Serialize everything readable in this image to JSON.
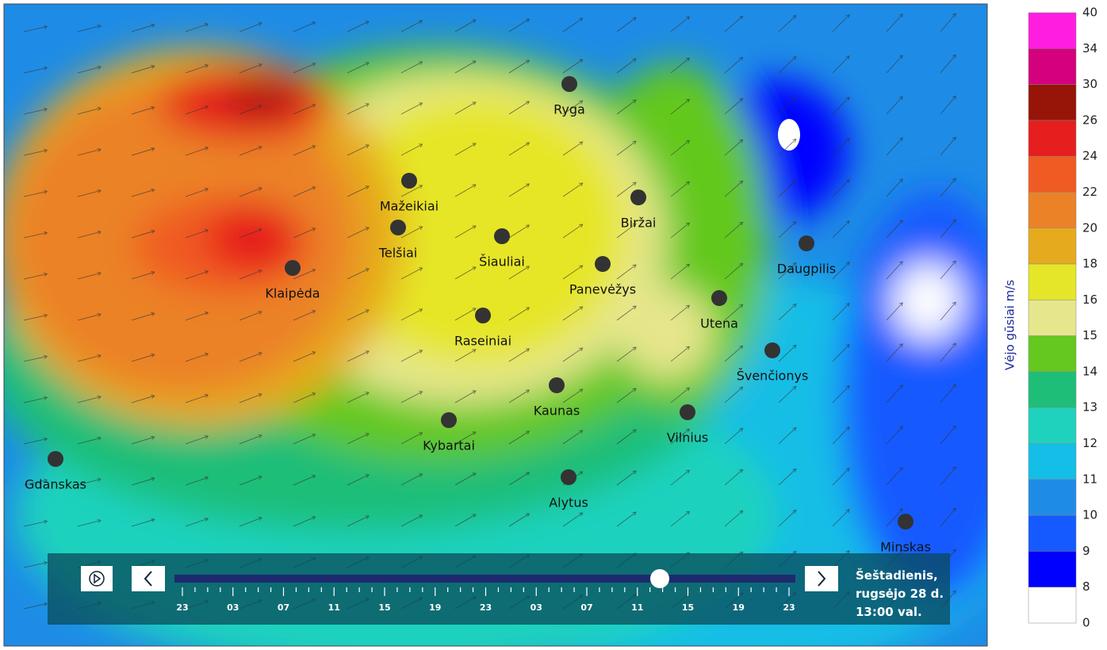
{
  "map": {
    "cities": [
      {
        "name": "Ryga"
      },
      {
        "name": "Mažeikiai"
      },
      {
        "name": "Telšiai"
      },
      {
        "name": "Šiauliai"
      },
      {
        "name": "Biržai"
      },
      {
        "name": "Klaipėda"
      },
      {
        "name": "Panevėžys"
      },
      {
        "name": "Daugpilis"
      },
      {
        "name": "Utena"
      },
      {
        "name": "Raseiniai"
      },
      {
        "name": "Švenčionys"
      },
      {
        "name": "Kaunas"
      },
      {
        "name": "Vilnius"
      },
      {
        "name": "Kybartai"
      },
      {
        "name": "Gdanskas"
      },
      {
        "name": "Alytus"
      },
      {
        "name": "Minskas"
      }
    ]
  },
  "legend": {
    "title": "Vėjo gūsiai  m/s",
    "labels": [
      40,
      34,
      30,
      26,
      24,
      22,
      20,
      18,
      16,
      15,
      14,
      13,
      12,
      11,
      10,
      9,
      8,
      0
    ],
    "colors": [
      "#ff1ee0",
      "#d4007e",
      "#961408",
      "#e61e1e",
      "#f05a23",
      "#eb8228",
      "#e6aa1e",
      "#e6e628",
      "#e6e68c",
      "#64c81e",
      "#1ebe78",
      "#1ed2be",
      "#14bee6",
      "#1e8ce6",
      "#145aff",
      "#0000ff",
      "#ffffff"
    ]
  },
  "timeline": {
    "ticks": [
      "23",
      "03",
      "07",
      "11",
      "15",
      "19",
      "23",
      "03",
      "07",
      "11",
      "15",
      "19",
      "23"
    ],
    "date": [
      "Šeštadienis,",
      "rugsėjo 28 d.",
      "13:00 val."
    ]
  }
}
